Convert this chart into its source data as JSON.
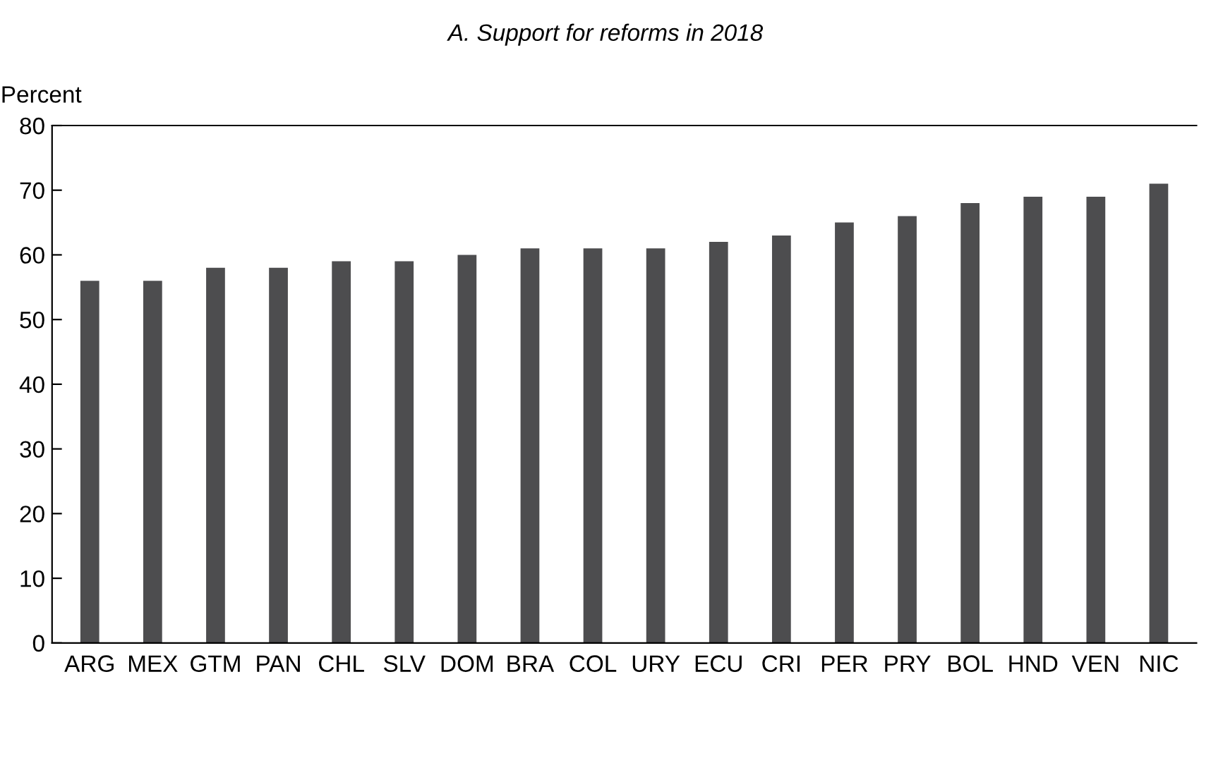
{
  "chart_data": {
    "type": "bar",
    "title": "A. Support for reforms in 2018",
    "ylabel": "Percent",
    "categories": [
      "ARG",
      "MEX",
      "GTM",
      "PAN",
      "CHL",
      "SLV",
      "DOM",
      "BRA",
      "COL",
      "URY",
      "ECU",
      "CRI",
      "PER",
      "PRY",
      "BOL",
      "HND",
      "VEN",
      "NIC"
    ],
    "values": [
      56,
      56,
      58,
      58,
      59,
      59,
      60,
      61,
      61,
      61,
      62,
      63,
      65,
      66,
      68,
      69,
      69,
      71
    ],
    "color": "#4d4d4f",
    "ylim": [
      0,
      80
    ],
    "yticks": [
      0,
      10,
      20,
      30,
      40,
      50,
      60,
      70,
      80
    ],
    "grid": false,
    "legend": false
  }
}
